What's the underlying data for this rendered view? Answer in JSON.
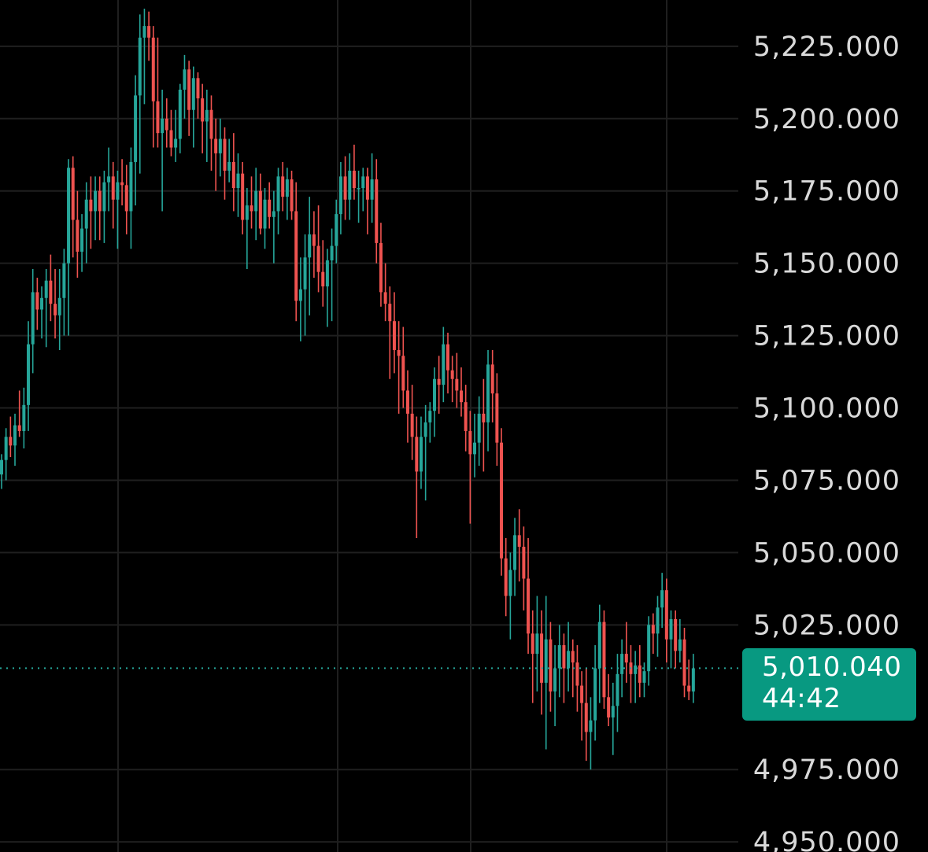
{
  "colors": {
    "background": "#000000",
    "grid": "#1f1f1f",
    "up": "#26a69a",
    "down": "#ef5350",
    "axis_text": "#d9d9d9",
    "current_price_bg": "#089981",
    "current_price_line": "#26a69a"
  },
  "chart_data": {
    "type": "candlestick",
    "y_ticks": [
      "5,225.000",
      "5,200.000",
      "5,175.000",
      "5,150.000",
      "5,125.000",
      "5,100.000",
      "5,075.000",
      "5,050.000",
      "5,025.000",
      "4,975.000",
      "4,950.000"
    ],
    "y_tick_values": [
      5225,
      5200,
      5175,
      5150,
      5125,
      5100,
      5075,
      5050,
      5025,
      4975,
      4950
    ],
    "ylim": [
      4946.5,
      5241
    ],
    "grid": true,
    "current_price": {
      "value": 5010.04,
      "label": "5,010.040",
      "countdown": "44:42"
    },
    "candles": [
      [
        5077,
        5084,
        5072,
        5082
      ],
      [
        5082,
        5093,
        5075,
        5090
      ],
      [
        5090,
        5097,
        5083,
        5087
      ],
      [
        5087,
        5098,
        5080,
        5094
      ],
      [
        5094,
        5106,
        5090,
        5092
      ],
      [
        5092,
        5107,
        5086,
        5101
      ],
      [
        5101,
        5130,
        5092,
        5122
      ],
      [
        5122,
        5148,
        5112,
        5140
      ],
      [
        5140,
        5145,
        5127,
        5134
      ],
      [
        5134,
        5142,
        5124,
        5138
      ],
      [
        5138,
        5148,
        5121,
        5144
      ],
      [
        5144,
        5153,
        5130,
        5136
      ],
      [
        5136,
        5148,
        5124,
        5132
      ],
      [
        5132,
        5148,
        5120,
        5138
      ],
      [
        5138,
        5155,
        5125,
        5150
      ],
      [
        5150,
        5186,
        5125,
        5183
      ],
      [
        5183,
        5187,
        5152,
        5165
      ],
      [
        5165,
        5175,
        5145,
        5154
      ],
      [
        5154,
        5167,
        5147,
        5162
      ],
      [
        5162,
        5178,
        5150,
        5172
      ],
      [
        5172,
        5180,
        5155,
        5168
      ],
      [
        5168,
        5180,
        5158,
        5175
      ],
      [
        5175,
        5180,
        5158,
        5168
      ],
      [
        5168,
        5182,
        5157,
        5178
      ],
      [
        5178,
        5190,
        5168,
        5180
      ],
      [
        5180,
        5185,
        5162,
        5172
      ],
      [
        5172,
        5182,
        5155,
        5178
      ],
      [
        5178,
        5186,
        5170,
        5177
      ],
      [
        5177,
        5184,
        5160,
        5168
      ],
      [
        5168,
        5190,
        5155,
        5185
      ],
      [
        5185,
        5215,
        5170,
        5208
      ],
      [
        5208,
        5236,
        5181,
        5228
      ],
      [
        5228,
        5238,
        5205,
        5232
      ],
      [
        5232,
        5237,
        5220,
        5228
      ],
      [
        5228,
        5232,
        5190,
        5206
      ],
      [
        5206,
        5228,
        5190,
        5195
      ],
      [
        5195,
        5210,
        5168,
        5200
      ],
      [
        5200,
        5207,
        5190,
        5196
      ],
      [
        5196,
        5203,
        5187,
        5190
      ],
      [
        5190,
        5203,
        5185,
        5193
      ],
      [
        5193,
        5212,
        5188,
        5210
      ],
      [
        5210,
        5222,
        5200,
        5217
      ],
      [
        5217,
        5220,
        5194,
        5203
      ],
      [
        5203,
        5218,
        5190,
        5214
      ],
      [
        5214,
        5216,
        5200,
        5207
      ],
      [
        5207,
        5212,
        5188,
        5199
      ],
      [
        5199,
        5210,
        5185,
        5203
      ],
      [
        5203,
        5208,
        5182,
        5193
      ],
      [
        5193,
        5200,
        5175,
        5188
      ],
      [
        5188,
        5200,
        5180,
        5193
      ],
      [
        5193,
        5197,
        5172,
        5182
      ],
      [
        5182,
        5193,
        5178,
        5185
      ],
      [
        5185,
        5195,
        5168,
        5176
      ],
      [
        5176,
        5188,
        5166,
        5181
      ],
      [
        5181,
        5185,
        5160,
        5165
      ],
      [
        5165,
        5176,
        5148,
        5170
      ],
      [
        5170,
        5180,
        5162,
        5168
      ],
      [
        5168,
        5183,
        5158,
        5175
      ],
      [
        5175,
        5181,
        5160,
        5162
      ],
      [
        5162,
        5176,
        5155,
        5172
      ],
      [
        5172,
        5178,
        5162,
        5166
      ],
      [
        5166,
        5175,
        5150,
        5168
      ],
      [
        5168,
        5183,
        5160,
        5180
      ],
      [
        5180,
        5185,
        5168,
        5173
      ],
      [
        5173,
        5183,
        5165,
        5179
      ],
      [
        5179,
        5182,
        5165,
        5168
      ],
      [
        5168,
        5178,
        5130,
        5137
      ],
      [
        5137,
        5152,
        5123,
        5141
      ],
      [
        5141,
        5160,
        5125,
        5152
      ],
      [
        5152,
        5173,
        5132,
        5160
      ],
      [
        5160,
        5168,
        5145,
        5156
      ],
      [
        5156,
        5170,
        5140,
        5147
      ],
      [
        5147,
        5158,
        5135,
        5142
      ],
      [
        5142,
        5155,
        5128,
        5151
      ],
      [
        5151,
        5162,
        5130,
        5156
      ],
      [
        5156,
        5172,
        5150,
        5167
      ],
      [
        5167,
        5185,
        5160,
        5180
      ],
      [
        5180,
        5187,
        5165,
        5172
      ],
      [
        5172,
        5188,
        5165,
        5182
      ],
      [
        5182,
        5191,
        5172,
        5176
      ],
      [
        5176,
        5182,
        5164,
        5176
      ],
      [
        5176,
        5183,
        5168,
        5180
      ],
      [
        5180,
        5183,
        5160,
        5172
      ],
      [
        5172,
        5188,
        5164,
        5179
      ],
      [
        5179,
        5186,
        5150,
        5157
      ],
      [
        5157,
        5164,
        5135,
        5140
      ],
      [
        5140,
        5150,
        5130,
        5136
      ],
      [
        5136,
        5142,
        5110,
        5130
      ],
      [
        5130,
        5140,
        5112,
        5120
      ],
      [
        5120,
        5130,
        5098,
        5118
      ],
      [
        5118,
        5128,
        5100,
        5106
      ],
      [
        5106,
        5113,
        5088,
        5098
      ],
      [
        5098,
        5108,
        5082,
        5090
      ],
      [
        5090,
        5097,
        5055,
        5078
      ],
      [
        5078,
        5097,
        5072,
        5090
      ],
      [
        5090,
        5101,
        5068,
        5095
      ],
      [
        5095,
        5102,
        5088,
        5099
      ],
      [
        5099,
        5114,
        5090,
        5110
      ],
      [
        5110,
        5118,
        5098,
        5108
      ],
      [
        5108,
        5128,
        5102,
        5122
      ],
      [
        5122,
        5126,
        5105,
        5113
      ],
      [
        5113,
        5118,
        5102,
        5110
      ],
      [
        5110,
        5119,
        5100,
        5106
      ],
      [
        5106,
        5114,
        5097,
        5102
      ],
      [
        5102,
        5108,
        5085,
        5092
      ],
      [
        5092,
        5099,
        5060,
        5084
      ],
      [
        5084,
        5098,
        5076,
        5088
      ],
      [
        5088,
        5104,
        5080,
        5098
      ],
      [
        5098,
        5110,
        5078,
        5095
      ],
      [
        5095,
        5120,
        5085,
        5115
      ],
      [
        5115,
        5120,
        5095,
        5105
      ],
      [
        5105,
        5112,
        5080,
        5088
      ],
      [
        5088,
        5093,
        5042,
        5048
      ],
      [
        5048,
        5055,
        5028,
        5035
      ],
      [
        5035,
        5050,
        5020,
        5044
      ],
      [
        5044,
        5062,
        5035,
        5056
      ],
      [
        5056,
        5065,
        5040,
        5052
      ],
      [
        5052,
        5059,
        5030,
        5041
      ],
      [
        5041,
        5055,
        5015,
        5022
      ],
      [
        5022,
        5030,
        4998,
        5015
      ],
      [
        5015,
        5035,
        5002,
        5022
      ],
      [
        5022,
        5030,
        4994,
        5005
      ],
      [
        5005,
        5035,
        4982,
        5020
      ],
      [
        5020,
        5026,
        4995,
        5002
      ],
      [
        5002,
        5018,
        4990,
        5010
      ],
      [
        5010,
        5025,
        5000,
        5018
      ],
      [
        5018,
        5022,
        4998,
        5010
      ],
      [
        5010,
        5026,
        5002,
        5016
      ],
      [
        5016,
        5020,
        5000,
        5012
      ],
      [
        5012,
        5018,
        4995,
        5004
      ],
      [
        5004,
        5009,
        4985,
        4998
      ],
      [
        4998,
        5010,
        4978,
        4988
      ],
      [
        4988,
        5000,
        4975,
        4992
      ],
      [
        4992,
        5018,
        4985,
        5010
      ],
      [
        5010,
        5032,
        4998,
        5026
      ],
      [
        5026,
        5030,
        4996,
        5000
      ],
      [
        5000,
        5008,
        4990,
        4993
      ],
      [
        4993,
        5005,
        4980,
        4997
      ],
      [
        4997,
        5015,
        4988,
        5008
      ],
      [
        5008,
        5020,
        5000,
        5015
      ],
      [
        5015,
        5026,
        5005,
        5012
      ],
      [
        5012,
        5018,
        4998,
        5008
      ],
      [
        5008,
        5016,
        4998,
        5011
      ],
      [
        5011,
        5018,
        5000,
        5005
      ],
      [
        5005,
        5012,
        5000,
        5009
      ],
      [
        5009,
        5028,
        5004,
        5025
      ],
      [
        5025,
        5029,
        5015,
        5022
      ],
      [
        5022,
        5035,
        5014,
        5031
      ],
      [
        5031,
        5043,
        5024,
        5037
      ],
      [
        5037,
        5041,
        5012,
        5020
      ],
      [
        5020,
        5030,
        5010,
        5027
      ],
      [
        5027,
        5030,
        5010,
        5016
      ],
      [
        5016,
        5027,
        5012,
        5020
      ],
      [
        5020,
        5024,
        5000,
        5004
      ],
      [
        5004,
        5013,
        4999,
        5002
      ],
      [
        5002,
        5015,
        4998,
        5010
      ]
    ]
  }
}
